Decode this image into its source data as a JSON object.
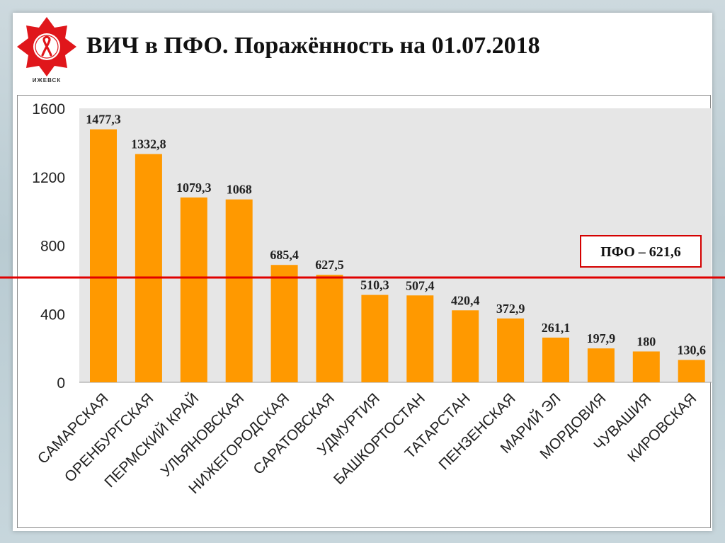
{
  "slide": {
    "title": "ВИЧ в ПФО. Поражённость на 01.07.2018",
    "logo_caption": "ИЖЕВСК",
    "logo_icon": "aids-ribbon-star-icon"
  },
  "chart_data": {
    "type": "bar",
    "categories": [
      "САМАРСКАЯ",
      "ОРЕНБУРГСКАЯ",
      "ПЕРМСКИЙ КРАЙ",
      "УЛЬЯНОВСКАЯ",
      "НИЖЕГОРОДСКАЯ",
      "САРАТОВСКАЯ",
      "УДМУРТИЯ",
      "БАШКОРТОСТАН",
      "ТАТАРСТАН",
      "ПЕНЗЕНСКАЯ",
      "МАРИЙ ЭЛ",
      "МОРДОВИЯ",
      "ЧУВАШИЯ",
      "КИРОВСКАЯ"
    ],
    "values": [
      1477.3,
      1332.8,
      1079.3,
      1068,
      685.4,
      627.5,
      510.3,
      507.4,
      420.4,
      372.9,
      261.1,
      197.9,
      180,
      130.6
    ],
    "value_labels": [
      "1477,3",
      "1332,8",
      "1079,3",
      "1068",
      "685,4",
      "627,5",
      "510,3",
      "507,4",
      "420,4",
      "372,9",
      "261,1",
      "197,9",
      "180",
      "130,6"
    ],
    "ylim": [
      0,
      1600
    ],
    "yticks": [
      0,
      400,
      800,
      1200,
      1600
    ],
    "ytick_labels": [
      "0",
      "400",
      "800",
      "1200",
      "1600"
    ],
    "grid": false,
    "bar_color": "#ff9900",
    "reference_line": {
      "value": 621.6,
      "label": "ПФО – 621,6",
      "color": "#e00000"
    },
    "title": "ВИЧ в ПФО. Поражённость на 01.07.2018",
    "xlabel": "",
    "ylabel": ""
  }
}
